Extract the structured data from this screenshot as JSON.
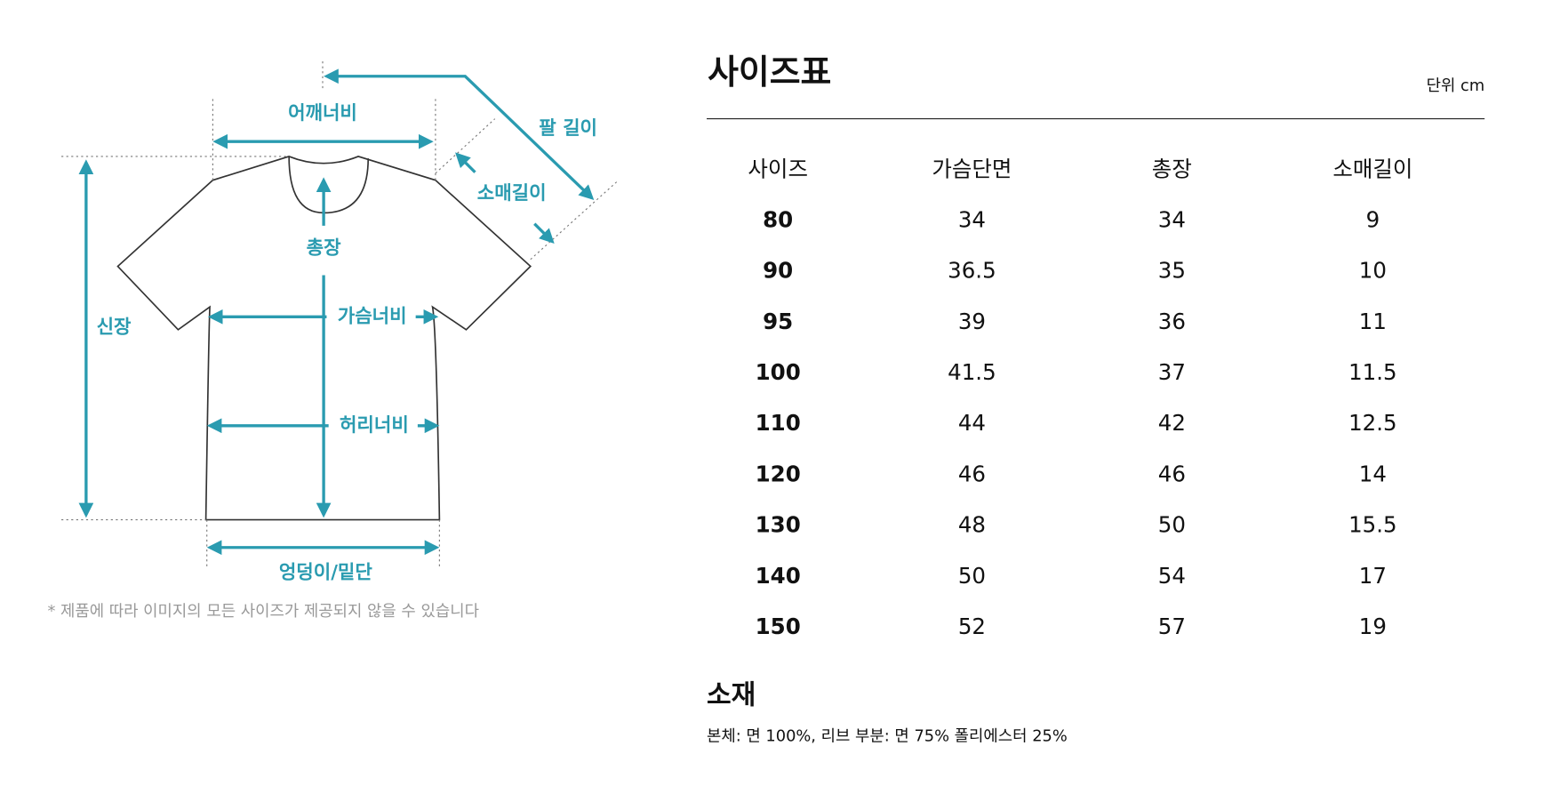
{
  "diagram": {
    "labels": {
      "shoulder": "어깨너비",
      "arm": "팔 길이",
      "sleeve": "소매길이",
      "length": "총장",
      "height": "신장",
      "chest": "가슴너비",
      "waist": "허리너비",
      "hem": "엉덩이/밑단"
    },
    "note": "* 제품에 따라 이미지의 모든 사이즈가 제공되지 않을 수 있습니다"
  },
  "size_table": {
    "title": "사이즈표",
    "unit": "단위 cm",
    "headers": [
      "사이즈",
      "가슴단면",
      "총장",
      "소매길이"
    ],
    "rows": [
      [
        "80",
        "34",
        "34",
        "9"
      ],
      [
        "90",
        "36.5",
        "35",
        "10"
      ],
      [
        "95",
        "39",
        "36",
        "11"
      ],
      [
        "100",
        "41.5",
        "37",
        "11.5"
      ],
      [
        "110",
        "44",
        "42",
        "12.5"
      ],
      [
        "120",
        "46",
        "46",
        "14"
      ],
      [
        "130",
        "48",
        "50",
        "15.5"
      ],
      [
        "140",
        "50",
        "54",
        "17"
      ],
      [
        "150",
        "52",
        "57",
        "19"
      ]
    ]
  },
  "material": {
    "title": "소재",
    "text": "본체: 면 100%, 리브 부분: 면 75% 폴리에스터 25%"
  }
}
